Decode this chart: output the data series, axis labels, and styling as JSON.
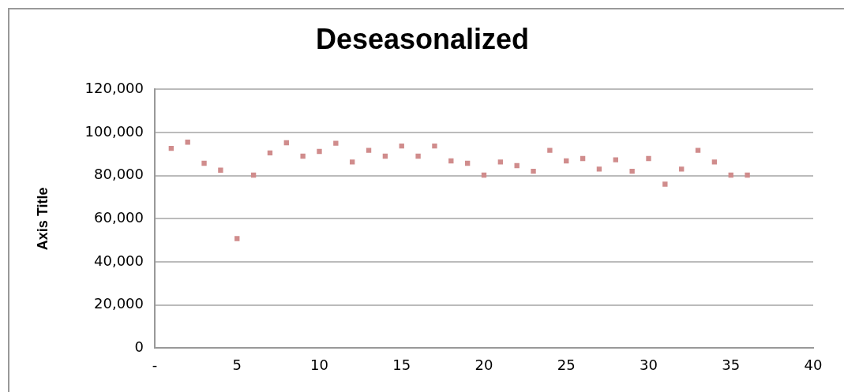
{
  "chart_data": {
    "type": "scatter",
    "title": "Deseasonalized",
    "ylabel": "Axis Title",
    "x": [
      1,
      2,
      3,
      4,
      5,
      6,
      7,
      8,
      9,
      10,
      11,
      12,
      13,
      14,
      15,
      16,
      17,
      18,
      19,
      20,
      21,
      22,
      23,
      24,
      25,
      26,
      27,
      28,
      29,
      30,
      31,
      32,
      33,
      34,
      35,
      36
    ],
    "series": [
      {
        "color": "#d08c8c",
        "values": [
          92600,
          95500,
          85700,
          82500,
          50800,
          80200,
          90500,
          95200,
          89000,
          91200,
          95000,
          86300,
          91700,
          89000,
          93700,
          89000,
          93700,
          86800,
          85700,
          80200,
          86300,
          84600,
          82000,
          91700,
          86800,
          87900,
          83000,
          87300,
          82000,
          87900,
          76000,
          83000,
          91700,
          86300,
          80200,
          80200
        ]
      }
    ],
    "xlim": [
      0,
      40
    ],
    "xticks": [
      {
        "value": 0,
        "label": "-"
      },
      5,
      10,
      15,
      20,
      25,
      30,
      35,
      40
    ],
    "ylim": [
      0,
      120000
    ],
    "yticks": [
      0,
      {
        "value": 20000,
        "label": "20,000"
      },
      {
        "value": 40000,
        "label": "40,000"
      },
      {
        "value": 60000,
        "label": "60,000"
      },
      {
        "value": 80000,
        "label": "80,000"
      },
      {
        "value": 100000,
        "label": "100,000"
      },
      {
        "value": 120000,
        "label": "120,000"
      }
    ],
    "grid": "y",
    "legend": false,
    "marker": "square"
  }
}
